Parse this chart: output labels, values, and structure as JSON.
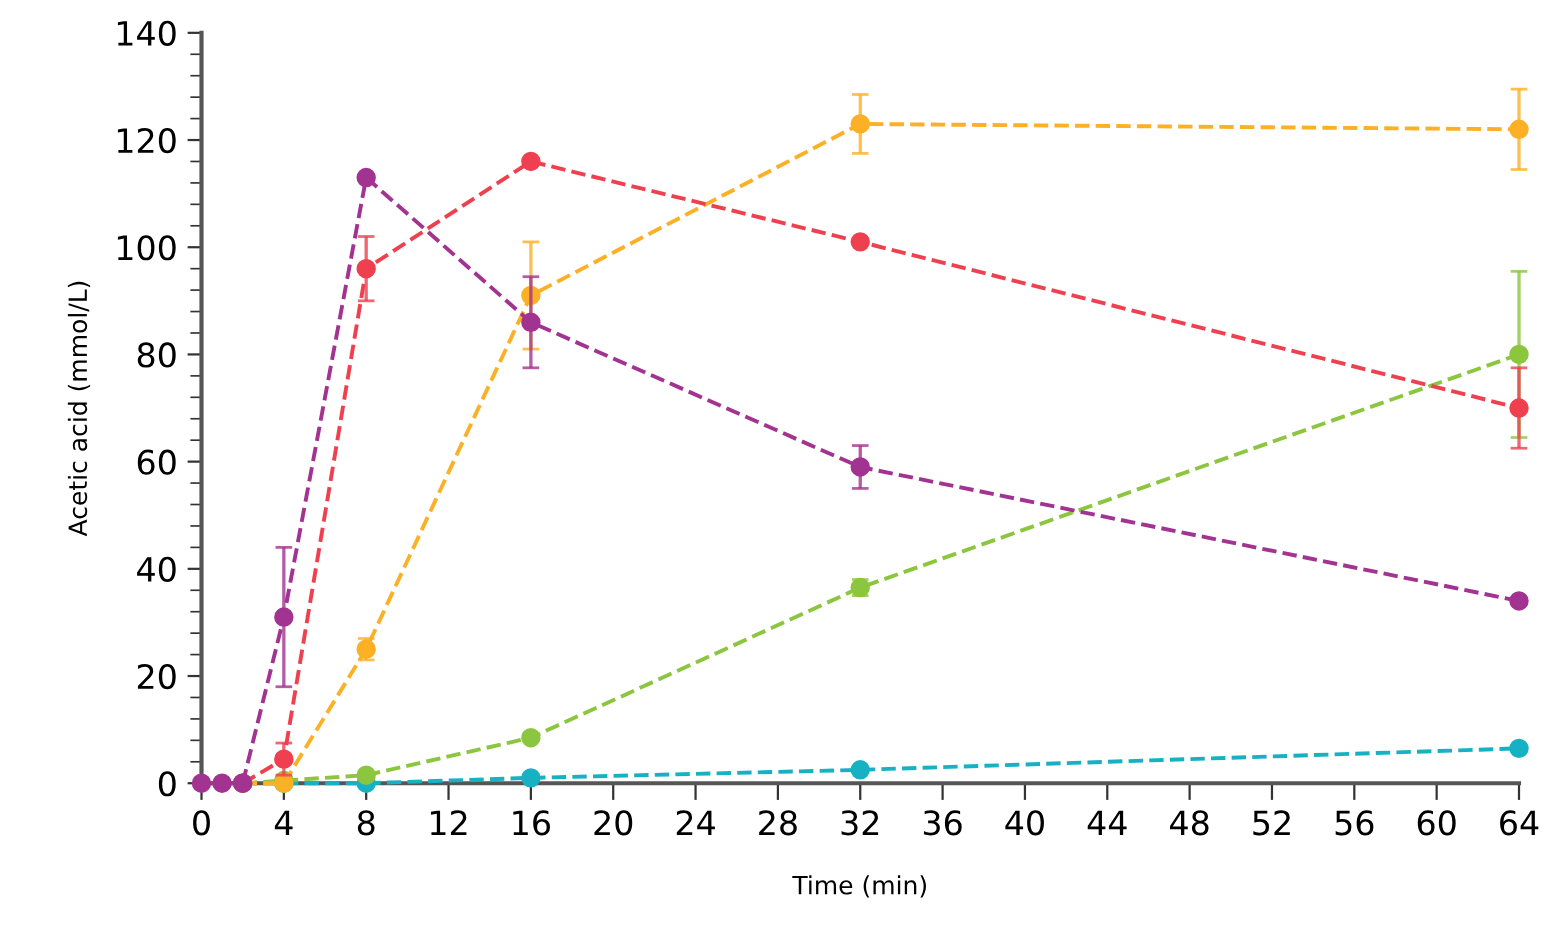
{
  "chart_data": {
    "type": "line",
    "xlabel": "Time (min)",
    "ylabel": "Acetic acid (mmol/L)",
    "x": [
      0,
      1,
      2,
      4,
      8,
      16,
      32,
      64
    ],
    "xlim": [
      0,
      64
    ],
    "xticks": [
      0,
      4,
      8,
      12,
      16,
      20,
      24,
      28,
      32,
      36,
      40,
      44,
      48,
      52,
      56,
      60,
      64
    ],
    "ylim": [
      0,
      140
    ],
    "yticks": [
      0,
      20,
      40,
      60,
      80,
      100,
      120,
      140
    ],
    "grid": false,
    "legend": false,
    "marker": "circle",
    "line_style": "dashed",
    "series": [
      {
        "color": "#17b1c4",
        "values": [
          null,
          null,
          0,
          0,
          0,
          1,
          2.5,
          6.5
        ]
      },
      {
        "color": "#8cc63f",
        "values": [
          null,
          null,
          0,
          0.5,
          1.5,
          8.5,
          36.5,
          80
        ],
        "errors": [
          null,
          null,
          null,
          null,
          null,
          null,
          1.5,
          15.5
        ]
      },
      {
        "color": "#fbb025",
        "values": [
          null,
          null,
          0,
          0,
          25,
          91,
          123,
          122
        ],
        "errors": [
          null,
          null,
          null,
          null,
          2,
          10,
          5.5,
          7.5
        ]
      },
      {
        "color": "#ef4050",
        "values": [
          null,
          null,
          0,
          4.5,
          96,
          116,
          101,
          70
        ],
        "errors": [
          null,
          null,
          null,
          3,
          6,
          null,
          null,
          7.5
        ]
      },
      {
        "color": "#a23391",
        "values": [
          0,
          0,
          0,
          31,
          113,
          86,
          59,
          34
        ],
        "errors": [
          null,
          null,
          null,
          13,
          null,
          8.5,
          4,
          null
        ]
      }
    ]
  }
}
